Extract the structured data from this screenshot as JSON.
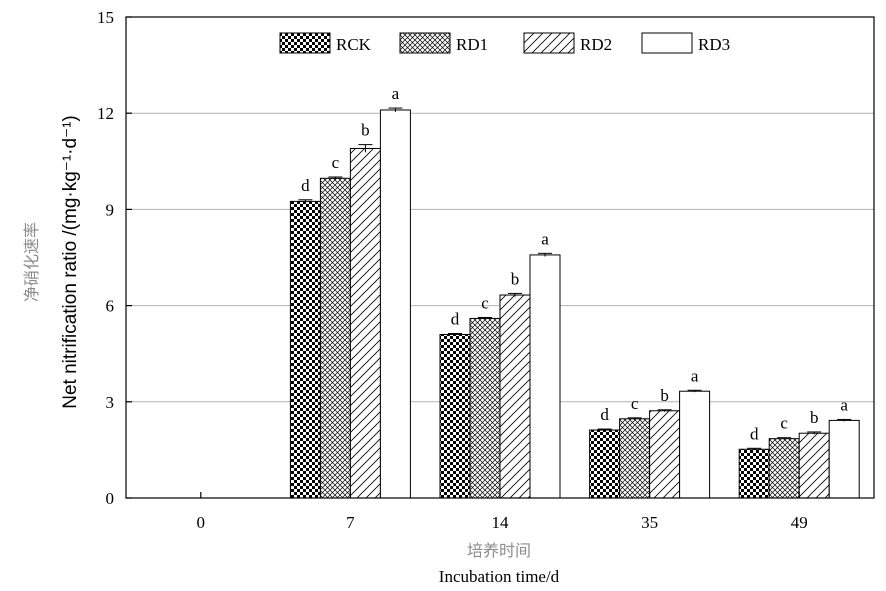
{
  "chart_data": {
    "type": "bar",
    "categories": [
      "0",
      "7",
      "14",
      "35",
      "49"
    ],
    "series": [
      {
        "name": "RCK",
        "values": [
          0,
          9.25,
          5.1,
          2.12,
          1.52
        ],
        "errors": [
          0,
          0.05,
          0.03,
          0.03,
          0.03
        ],
        "sig": [
          "",
          "d",
          "d",
          "d",
          "d"
        ],
        "pattern": "checker"
      },
      {
        "name": "RD1",
        "values": [
          0,
          9.97,
          5.6,
          2.47,
          1.85
        ],
        "errors": [
          0,
          0.04,
          0.03,
          0.03,
          0.03
        ],
        "sig": [
          "",
          "c",
          "c",
          "c",
          "c"
        ],
        "pattern": "crosshatch"
      },
      {
        "name": "RD2",
        "values": [
          0,
          10.9,
          6.33,
          2.72,
          2.02
        ],
        "errors": [
          0,
          0.12,
          0.05,
          0.03,
          0.04
        ],
        "sig": [
          "",
          "b",
          "b",
          "b",
          "b"
        ],
        "pattern": "diagonal"
      },
      {
        "name": "RD3",
        "values": [
          0,
          12.1,
          7.58,
          3.33,
          2.42
        ],
        "errors": [
          0,
          0.06,
          0.05,
          0.03,
          0.03
        ],
        "sig": [
          "",
          "a",
          "a",
          "a",
          "a"
        ],
        "pattern": "white"
      }
    ],
    "ylabel_en": "Net nitrification ratio /(mg·kg⁻¹·d⁻¹)",
    "ylabel_cn": "净硝化速率",
    "xlabel_en": "Incubation time/d",
    "xlabel_cn": "培养时间",
    "ylim": [
      0,
      15
    ],
    "yticks": [
      0,
      3,
      6,
      9,
      12,
      15
    ],
    "grid": true,
    "legend_position": "top-right"
  }
}
